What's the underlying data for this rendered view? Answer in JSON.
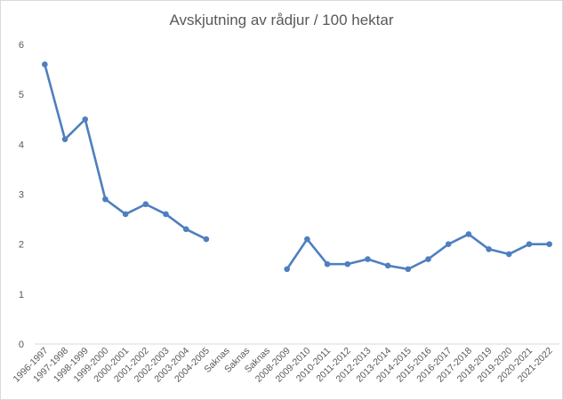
{
  "chart_data": {
    "type": "line",
    "title": "Avskjutning av rådjur / 100 hektar",
    "categories": [
      "1996-1997",
      "1997-1998",
      "1998-1999",
      "1999-2000",
      "2000-2001",
      "2001-2002",
      "2002-2003",
      "2003-2004",
      "2004-2005",
      "Saknas",
      "Saknas",
      "Saknas",
      "2008-2009",
      "2009-2010",
      "2010-2011",
      "2011-2012",
      "2012-2013",
      "2013-2014",
      "2014-2015",
      "2015-2016",
      "2016-2017",
      "2017-2018",
      "2018-2019",
      "2019-2020",
      "2020-2021",
      "2021-2022"
    ],
    "series": [
      {
        "values": [
          5.6,
          4.1,
          4.5,
          2.9,
          2.6,
          2.8,
          2.6,
          2.3,
          2.1,
          null,
          null,
          null,
          1.5,
          2.1,
          1.6,
          1.6,
          1.7,
          1.57,
          1.5,
          1.7,
          2.0,
          2.2,
          1.9,
          1.8,
          2.0,
          2.0
        ],
        "color": "#4e7fbf"
      }
    ],
    "ylim": [
      0,
      6
    ],
    "yticks": [
      "0",
      "1",
      "2",
      "3",
      "4",
      "5",
      "6"
    ],
    "xlabel": "",
    "ylabel": "",
    "grid": false,
    "legend": "none"
  }
}
